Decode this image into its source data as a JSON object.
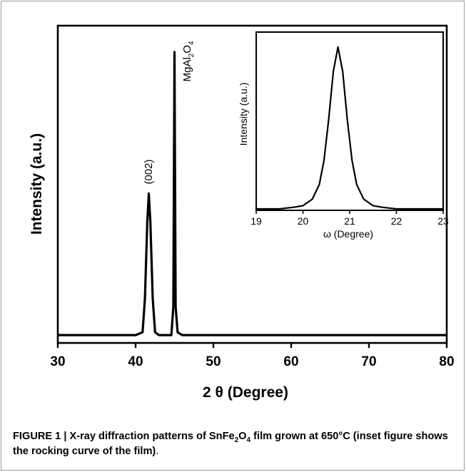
{
  "chart_data": [
    {
      "type": "line",
      "xlabel": "2 θ (Degree)",
      "ylabel": "Intensity (a.u.)",
      "xlim": [
        30,
        80
      ],
      "x_ticks": [
        "30",
        "40",
        "50",
        "60",
        "70",
        "80"
      ],
      "y_ticks": [],
      "grid": false,
      "legend": "none",
      "series": [
        {
          "peaks": [
            {
              "x": 41.7,
              "relative_intensity": 0.5,
              "label": "(002)"
            },
            {
              "x": 45.0,
              "relative_intensity": 1.0,
              "label": "MgAl2O4"
            }
          ],
          "x": [
            30,
            35,
            38,
            40,
            40.9,
            41.2,
            41.5,
            41.7,
            41.9,
            42.2,
            42.5,
            43,
            44,
            44.6,
            44.85,
            45.0,
            45.15,
            45.4,
            46,
            50,
            60,
            70,
            80
          ],
          "y": [
            0.0,
            0.0,
            0.0,
            0.0,
            0.01,
            0.13,
            0.4,
            0.5,
            0.4,
            0.13,
            0.01,
            0.0,
            0.0,
            0.0,
            0.1,
            1.0,
            0.1,
            0.01,
            0.0,
            0.0,
            0.0,
            0.0,
            0.0
          ]
        }
      ]
    },
    {
      "type": "line",
      "inset": true,
      "xlabel": "ω (Degree)",
      "ylabel": "Intensity (a.u.)",
      "xlim": [
        19,
        23
      ],
      "x_ticks": [
        "19",
        "20",
        "21",
        "22",
        "23"
      ],
      "y_ticks": [],
      "grid": false,
      "legend": "none",
      "series": [
        {
          "peak_center": 20.75,
          "x": [
            19.0,
            19.5,
            19.8,
            20.0,
            20.2,
            20.35,
            20.45,
            20.55,
            20.65,
            20.75,
            20.85,
            20.95,
            21.05,
            21.15,
            21.3,
            21.5,
            21.7,
            22.0,
            22.5,
            23.0
          ],
          "y": [
            0.0,
            0.0,
            0.01,
            0.02,
            0.06,
            0.15,
            0.3,
            0.55,
            0.85,
            1.0,
            0.85,
            0.55,
            0.3,
            0.15,
            0.06,
            0.02,
            0.01,
            0.0,
            0.0,
            0.0
          ]
        }
      ]
    }
  ],
  "annotations": {
    "peak_002": "(002)",
    "peak_mgal_main": "MgAl",
    "peak_mgal_sub1": "2",
    "peak_mgal_o": "O",
    "peak_mgal_sub2": "4"
  },
  "caption": {
    "lead": "FIGURE 1 | X-ray diffraction patterns of SnFe",
    "sub1": "2",
    "mid1": "O",
    "sub2": "4",
    "rest": " film grown at 650°C (inset figure shows the rocking curve of the film)",
    "period": "."
  }
}
